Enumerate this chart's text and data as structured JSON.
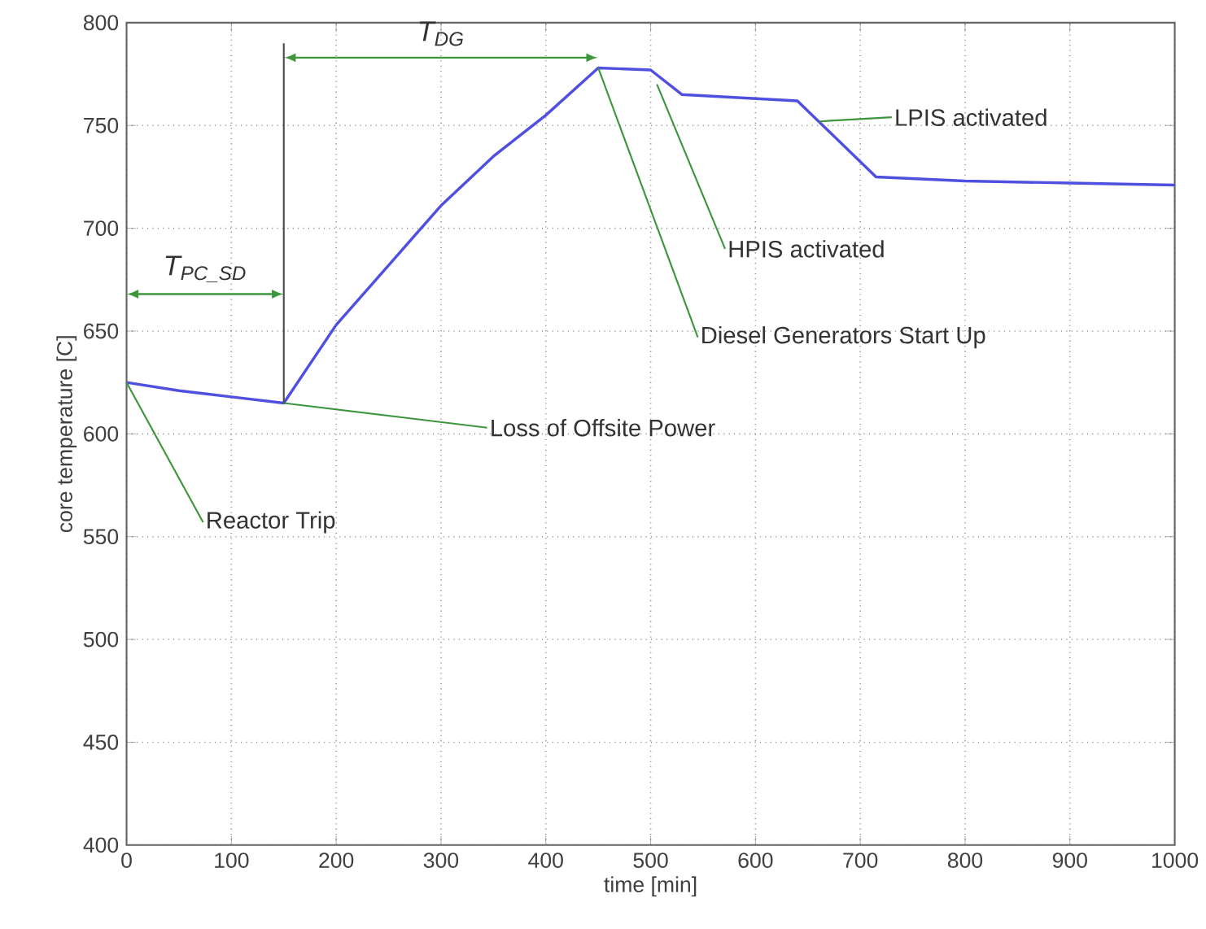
{
  "chart_data": {
    "type": "line",
    "xlabel": "time [min]",
    "ylabel": "core temperature [C]",
    "x": [
      0,
      50,
      100,
      150,
      200,
      250,
      300,
      350,
      400,
      450,
      500,
      530,
      640,
      715,
      800,
      900,
      1000
    ],
    "series": [
      {
        "color": "#5050e0",
        "values": [
          625,
          621,
          618,
          615,
          653,
          682,
          711,
          735,
          755,
          778,
          777,
          765,
          762,
          725,
          723,
          722,
          721
        ]
      }
    ],
    "xlim": [
      0,
      1000
    ],
    "xticks": [
      0,
      100,
      200,
      300,
      400,
      500,
      600,
      700,
      800,
      900,
      1000
    ],
    "ylim": [
      400,
      800
    ],
    "yticks": [
      400,
      450,
      500,
      550,
      600,
      650,
      700,
      750,
      800
    ],
    "grid": true,
    "marker": "none",
    "line_style": "solid",
    "ref_lines": [
      {
        "axis": "x",
        "value": 150,
        "color": "#4c4c4c"
      }
    ],
    "annotations": [
      {
        "text": "Reactor Trip",
        "x": 0,
        "y": 625
      },
      {
        "text": "Loss of Offsite Power",
        "x": 150,
        "y": 615
      },
      {
        "text": "Diesel Generators Start Up",
        "x": 450,
        "y": 778
      },
      {
        "text": "HPIS activated",
        "x": 506,
        "y": 770
      },
      {
        "text": "LPIS activated",
        "x": 661,
        "y": 752
      },
      "T$_{PC_SD}$",
      "T$_{DG}$"
    ]
  }
}
